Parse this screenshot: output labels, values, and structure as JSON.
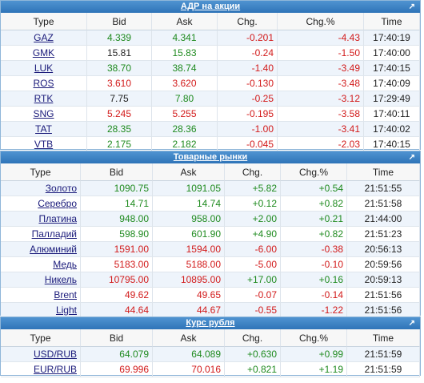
{
  "sections": [
    {
      "title": "АДР на акции",
      "columns": [
        "Type",
        "Bid",
        "Ask",
        "Chg.",
        "Chg.%",
        "Time"
      ],
      "rows": [
        {
          "ticker": "GAZ",
          "bid": "4.339",
          "ask": "4.341",
          "chg": "-0.201",
          "chgp": "-4.43",
          "time": "17:40:19",
          "bidc": "pos",
          "askc": "pos",
          "chgc": "neg"
        },
        {
          "ticker": "GMK",
          "bid": "15.81",
          "ask": "15.83",
          "chg": "-0.24",
          "chgp": "-1.50",
          "time": "17:40:00",
          "bidc": "plain",
          "askc": "pos",
          "chgc": "neg"
        },
        {
          "ticker": "LUK",
          "bid": "38.70",
          "ask": "38.74",
          "chg": "-1.40",
          "chgp": "-3.49",
          "time": "17:40:15",
          "bidc": "pos",
          "askc": "pos",
          "chgc": "neg"
        },
        {
          "ticker": "ROS",
          "bid": "3.610",
          "ask": "3.620",
          "chg": "-0.130",
          "chgp": "-3.48",
          "time": "17:40:09",
          "bidc": "neg",
          "askc": "neg",
          "chgc": "neg"
        },
        {
          "ticker": "RTK",
          "bid": "7.75",
          "ask": "7.80",
          "chg": "-0.25",
          "chgp": "-3.12",
          "time": "17:29:49",
          "bidc": "plain",
          "askc": "pos",
          "chgc": "neg"
        },
        {
          "ticker": "SNG",
          "bid": "5.245",
          "ask": "5.255",
          "chg": "-0.195",
          "chgp": "-3.58",
          "time": "17:40:11",
          "bidc": "neg",
          "askc": "neg",
          "chgc": "neg"
        },
        {
          "ticker": "TAT",
          "bid": "28.35",
          "ask": "28.36",
          "chg": "-1.00",
          "chgp": "-3.41",
          "time": "17:40:02",
          "bidc": "pos",
          "askc": "pos",
          "chgc": "neg"
        },
        {
          "ticker": "VTB",
          "bid": "2.175",
          "ask": "2.182",
          "chg": "-0.045",
          "chgp": "-2.03",
          "time": "17:40:15",
          "bidc": "pos",
          "askc": "pos",
          "chgc": "neg"
        }
      ]
    },
    {
      "title": "Товарные рынки",
      "columns": [
        "Type",
        "Bid",
        "Ask",
        "Chg.",
        "Chg.%",
        "Time"
      ],
      "rows": [
        {
          "ticker": "Золото",
          "bid": "1090.75",
          "ask": "1091.05",
          "chg": "+5.82",
          "chgp": "+0.54",
          "time": "21:51:55",
          "bidc": "pos",
          "askc": "pos",
          "chgc": "pos"
        },
        {
          "ticker": "Серебро",
          "bid": "14.71",
          "ask": "14.74",
          "chg": "+0.12",
          "chgp": "+0.82",
          "time": "21:51:58",
          "bidc": "pos",
          "askc": "pos",
          "chgc": "pos"
        },
        {
          "ticker": "Платина",
          "bid": "948.00",
          "ask": "958.00",
          "chg": "+2.00",
          "chgp": "+0.21",
          "time": "21:44:00",
          "bidc": "pos",
          "askc": "pos",
          "chgc": "pos"
        },
        {
          "ticker": "Палладий",
          "bid": "598.90",
          "ask": "601.90",
          "chg": "+4.90",
          "chgp": "+0.82",
          "time": "21:51:23",
          "bidc": "pos",
          "askc": "pos",
          "chgc": "pos"
        },
        {
          "ticker": "Алюминий",
          "bid": "1591.00",
          "ask": "1594.00",
          "chg": "-6.00",
          "chgp": "-0.38",
          "time": "20:56:13",
          "bidc": "neg",
          "askc": "neg",
          "chgc": "neg"
        },
        {
          "ticker": "Медь",
          "bid": "5183.00",
          "ask": "5188.00",
          "chg": "-5.00",
          "chgp": "-0.10",
          "time": "20:59:56",
          "bidc": "neg",
          "askc": "neg",
          "chgc": "neg"
        },
        {
          "ticker": "Никель",
          "bid": "10795.00",
          "ask": "10895.00",
          "chg": "+17.00",
          "chgp": "+0.16",
          "time": "20:59:13",
          "bidc": "neg",
          "askc": "neg",
          "chgc": "pos"
        },
        {
          "ticker": "Brent",
          "bid": "49.62",
          "ask": "49.65",
          "chg": "-0.07",
          "chgp": "-0.14",
          "time": "21:51:56",
          "bidc": "neg",
          "askc": "neg",
          "chgc": "neg"
        },
        {
          "ticker": "Light",
          "bid": "44.64",
          "ask": "44.67",
          "chg": "-0.55",
          "chgp": "-1.22",
          "time": "21:51:56",
          "bidc": "neg",
          "askc": "neg",
          "chgc": "neg"
        }
      ]
    },
    {
      "title": "Курс рубля",
      "columns": [
        "Type",
        "Bid",
        "Ask",
        "Chg.",
        "Chg.%",
        "Time"
      ],
      "rows": [
        {
          "ticker": "USD/RUB",
          "bid": "64.079",
          "ask": "64.089",
          "chg": "+0.630",
          "chgp": "+0.99",
          "time": "21:51:59",
          "bidc": "pos",
          "askc": "pos",
          "chgc": "pos"
        },
        {
          "ticker": "EUR/RUB",
          "bid": "69.996",
          "ask": "70.016",
          "chg": "+0.821",
          "chgp": "+1.19",
          "time": "21:51:59",
          "bidc": "neg",
          "askc": "neg",
          "chgc": "pos"
        }
      ]
    }
  ],
  "expand_icon": "expand-arrow-icon",
  "colors": {
    "header": "#3a80c2",
    "positive": "#1e8a1e",
    "negative": "#d21a1a",
    "alt_row": "#eef4fb"
  }
}
